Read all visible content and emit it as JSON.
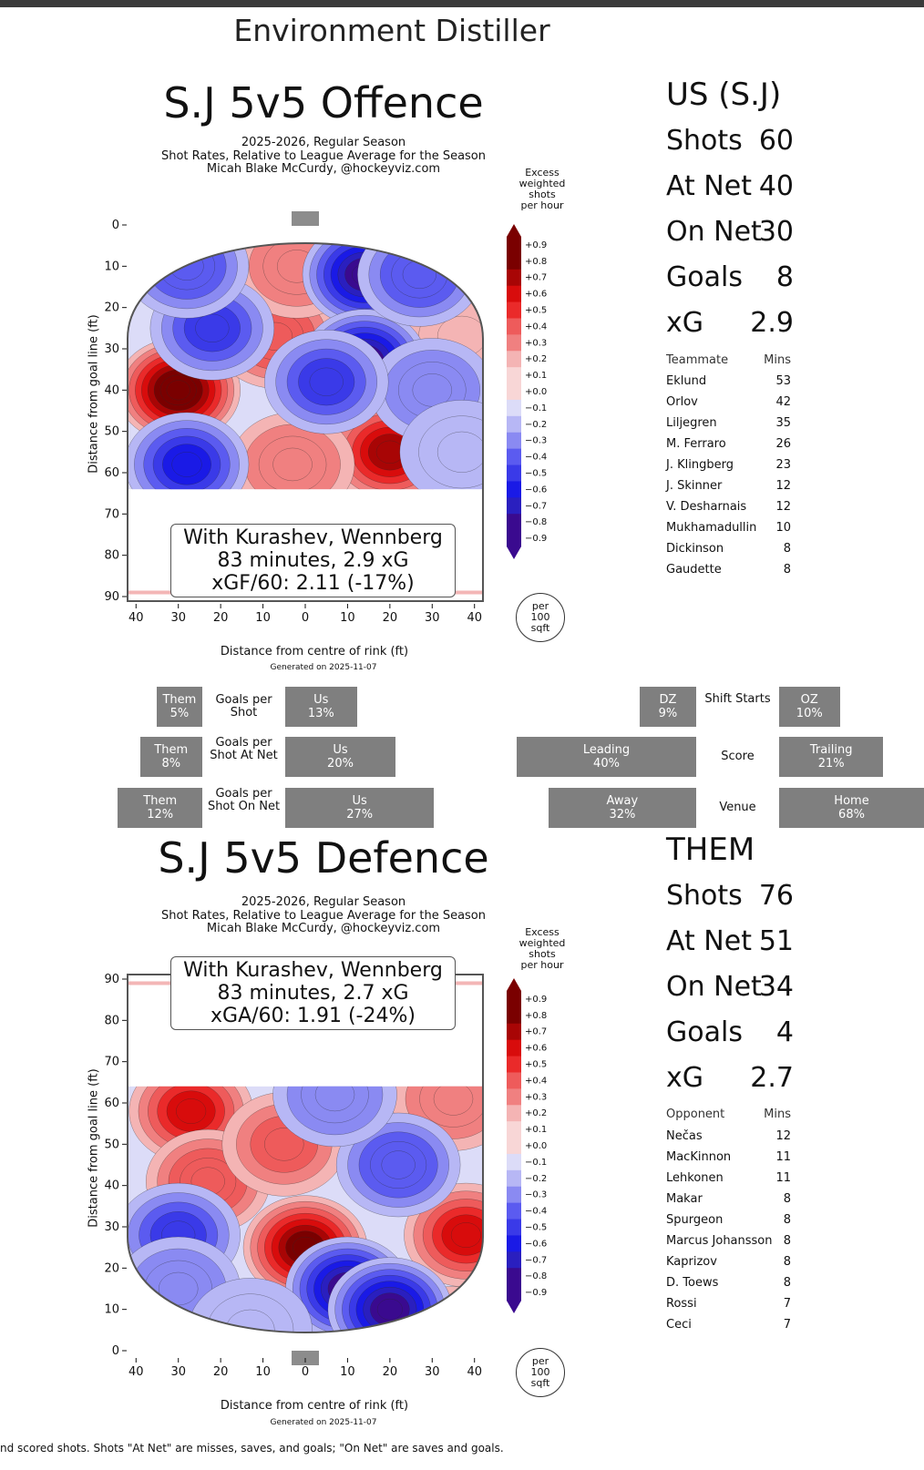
{
  "app_title": "Environment Distiller",
  "colors": {
    "neg": [
      "#3a0a8f",
      "#2a1fbf",
      "#1a1ae6",
      "#3a3ae8",
      "#5b5bf0",
      "#8a8af2",
      "#b7b7f5",
      "#dcdcf8"
    ],
    "pos": [
      "#f8d6d6",
      "#f4b4b4",
      "#f08080",
      "#ee5b5b",
      "#ea2a2a",
      "#d80c0c",
      "#a80505",
      "#7a0000"
    ],
    "bar_gray": "#7f7f7f"
  },
  "offence": {
    "title": "S.J 5v5 Offence",
    "subtitle1": "2025-2026, Regular Season",
    "subtitle2": "Shot Rates, Relative to League Average for the Season",
    "subtitle3": "Micah Blake McCurdy, @hockeyviz.com",
    "ylabel": "Distance from goal line (ft)",
    "xlabel": "Distance from centre of rink (ft)",
    "generated": "Generated on 2025-11-07",
    "colorbar_title": [
      "Excess",
      "weighted",
      "shots",
      "per hour"
    ],
    "per_sqft": [
      "per",
      "100",
      "sqft"
    ],
    "infobox": [
      "With Kurashev, Wennberg",
      "83 minutes, 2.9 xG",
      "xGF/60: 2.11 (-17%)"
    ]
  },
  "defence": {
    "title": "S.J 5v5 Defence",
    "subtitle1": "2025-2026, Regular Season",
    "subtitle2": "Shot Rates, Relative to League Average for the Season",
    "subtitle3": "Micah Blake McCurdy, @hockeyviz.com",
    "ylabel": "Distance from goal line (ft)",
    "xlabel": "Distance from centre of rink (ft)",
    "generated": "Generated on 2025-11-07",
    "colorbar_title": [
      "Excess",
      "weighted",
      "shots",
      "per hour"
    ],
    "per_sqft": [
      "per",
      "100",
      "sqft"
    ],
    "infobox": [
      "With Kurashev, Wennberg",
      "83 minutes, 2.7 xG",
      "xGA/60: 1.91 (-24%)"
    ]
  },
  "us": {
    "heading": "US (S.J)",
    "stats": [
      {
        "label": "Shots",
        "value": "60"
      },
      {
        "label": "At Net",
        "value": "40"
      },
      {
        "label": "On Net",
        "value": "30"
      },
      {
        "label": "Goals",
        "value": "8"
      },
      {
        "label": "xG",
        "value": "2.9"
      }
    ],
    "table_head": {
      "name": "Teammate",
      "mins": "Mins"
    },
    "table": [
      {
        "name": "Eklund",
        "mins": "53"
      },
      {
        "name": "Orlov",
        "mins": "42"
      },
      {
        "name": "Liljegren",
        "mins": "35"
      },
      {
        "name": "M. Ferraro",
        "mins": "26"
      },
      {
        "name": "J. Klingberg",
        "mins": "23"
      },
      {
        "name": "J. Skinner",
        "mins": "12"
      },
      {
        "name": "V. Desharnais",
        "mins": "12"
      },
      {
        "name": "Mukhamadullin",
        "mins": "10"
      },
      {
        "name": "Dickinson",
        "mins": "8"
      },
      {
        "name": "Gaudette",
        "mins": "8"
      }
    ]
  },
  "them": {
    "heading": "THEM",
    "stats": [
      {
        "label": "Shots",
        "value": "76"
      },
      {
        "label": "At Net",
        "value": "51"
      },
      {
        "label": "On Net",
        "value": "34"
      },
      {
        "label": "Goals",
        "value": "4"
      },
      {
        "label": "xG",
        "value": "2.7"
      }
    ],
    "table_head": {
      "name": "Opponent",
      "mins": "Mins"
    },
    "table": [
      {
        "name": "Nečas",
        "mins": "12"
      },
      {
        "name": "MacKinnon",
        "mins": "11"
      },
      {
        "name": "Lehkonen",
        "mins": "11"
      },
      {
        "name": "Makar",
        "mins": "8"
      },
      {
        "name": "Spurgeon",
        "mins": "8"
      },
      {
        "name": "Marcus Johansson",
        "mins": "8"
      },
      {
        "name": "Kaprizov",
        "mins": "8"
      },
      {
        "name": "D. Toews",
        "mins": "8"
      },
      {
        "name": "Rossi",
        "mins": "7"
      },
      {
        "name": "Ceci",
        "mins": "7"
      }
    ]
  },
  "bars": {
    "goals_per_shot": {
      "label": "Goals per Shot",
      "them_label": "Them",
      "them": 5,
      "them_text": "5%",
      "us_label": "Us",
      "us": 13,
      "us_text": "13%"
    },
    "goals_per_shot_at_net": {
      "label": "Goals per Shot At Net",
      "them_label": "Them",
      "them": 8,
      "them_text": "8%",
      "us_label": "Us",
      "us": 20,
      "us_text": "20%"
    },
    "goals_per_shot_on_net": {
      "label": "Goals per Shot On Net",
      "them_label": "Them",
      "them": 12,
      "them_text": "12%",
      "us_label": "Us",
      "us": 27,
      "us_text": "27%"
    },
    "shift_starts": {
      "label": "Shift Starts",
      "left_label": "DZ",
      "left": 9,
      "left_text": "9%",
      "right_label": "OZ",
      "right": 10,
      "right_text": "10%"
    },
    "score": {
      "label": "Score",
      "left_label": "Leading",
      "left": 40,
      "left_text": "40%",
      "right_label": "Trailing",
      "right": 21,
      "right_text": "21%"
    },
    "venue": {
      "label": "Venue",
      "left_label": "Away",
      "left": 32,
      "left_text": "32%",
      "right_label": "Home",
      "right": 68,
      "right_text": "68%"
    }
  },
  "chart_data": [
    {
      "type": "heatmap",
      "title": "S.J 5v5 Offence",
      "xlabel": "Distance from centre of rink (ft)",
      "ylabel": "Distance from goal line (ft)",
      "xlim": [
        -42,
        42
      ],
      "ylim": [
        0,
        90
      ],
      "x_ticks": [
        "40",
        "30",
        "20",
        "10",
        "0",
        "10",
        "20",
        "30",
        "40"
      ],
      "y_ticks": [
        "0",
        "10",
        "20",
        "30",
        "40",
        "50",
        "60",
        "70",
        "80",
        "90"
      ],
      "colorbar_ticks": [
        "+0.9",
        "+0.8",
        "+0.7",
        "+0.6",
        "+0.5",
        "+0.4",
        "+0.3",
        "+0.2",
        "+0.1",
        "+0.0",
        "−0.1",
        "−0.2",
        "−0.3",
        "−0.4",
        "−0.5",
        "−0.6",
        "−0.7",
        "−0.8",
        "−0.9"
      ],
      "hotspots": [
        {
          "x": -30,
          "y": 40,
          "value": 0.9
        },
        {
          "x": 20,
          "y": 55,
          "value": 0.7
        },
        {
          "x": -7,
          "y": 27,
          "value": 0.4
        },
        {
          "x": -2,
          "y": 10,
          "value": 0.3
        },
        {
          "x": -3,
          "y": 58,
          "value": 0.3
        },
        {
          "x": 37,
          "y": 27,
          "value": 0.2
        },
        {
          "x": 14,
          "y": 12,
          "value": -0.8
        },
        {
          "x": 14,
          "y": 33,
          "value": -0.8
        },
        {
          "x": -28,
          "y": 58,
          "value": -0.6
        },
        {
          "x": -22,
          "y": 25,
          "value": -0.5
        },
        {
          "x": -28,
          "y": 10,
          "value": -0.4
        },
        {
          "x": 27,
          "y": 12,
          "value": -0.4
        },
        {
          "x": 30,
          "y": 40,
          "value": -0.3
        },
        {
          "x": 5,
          "y": 38,
          "value": -0.5
        },
        {
          "x": 37,
          "y": 55,
          "value": -0.2
        }
      ]
    },
    {
      "type": "heatmap",
      "title": "S.J 5v5 Defence",
      "xlabel": "Distance from centre of rink (ft)",
      "ylabel": "Distance from goal line (ft)",
      "xlim": [
        -42,
        42
      ],
      "ylim": [
        0,
        90
      ],
      "x_ticks": [
        "40",
        "30",
        "20",
        "10",
        "0",
        "10",
        "20",
        "30",
        "40"
      ],
      "y_ticks": [
        "90",
        "80",
        "70",
        "60",
        "50",
        "40",
        "30",
        "20",
        "10",
        "0"
      ],
      "colorbar_ticks": [
        "+0.9",
        "+0.8",
        "+0.7",
        "+0.6",
        "+0.5",
        "+0.4",
        "+0.3",
        "+0.2",
        "+0.1",
        "+0.0",
        "−0.1",
        "−0.2",
        "−0.3",
        "−0.4",
        "−0.5",
        "−0.6",
        "−0.7",
        "−0.8",
        "−0.9"
      ],
      "hotspots": [
        {
          "x": 0,
          "y": 25,
          "value": 0.8
        },
        {
          "x": -27,
          "y": 58,
          "value": 0.6
        },
        {
          "x": -23,
          "y": 41,
          "value": 0.4
        },
        {
          "x": -5,
          "y": 50,
          "value": 0.35
        },
        {
          "x": 38,
          "y": 28,
          "value": 0.6
        },
        {
          "x": 35,
          "y": 3,
          "value": 0.5
        },
        {
          "x": 35,
          "y": 61,
          "value": 0.3
        },
        {
          "x": 10,
          "y": 15,
          "value": -0.8
        },
        {
          "x": 20,
          "y": 10,
          "value": -0.8
        },
        {
          "x": -30,
          "y": 28,
          "value": -0.5
        },
        {
          "x": -30,
          "y": 15,
          "value": -0.3
        },
        {
          "x": 22,
          "y": 45,
          "value": -0.4
        },
        {
          "x": 7,
          "y": 62,
          "value": -0.3
        },
        {
          "x": -13,
          "y": 5,
          "value": -0.2
        }
      ]
    }
  ],
  "footnote": "nd scored shots. Shots \"At Net\" are misses, saves, and goals; \"On Net\" are saves and goals."
}
